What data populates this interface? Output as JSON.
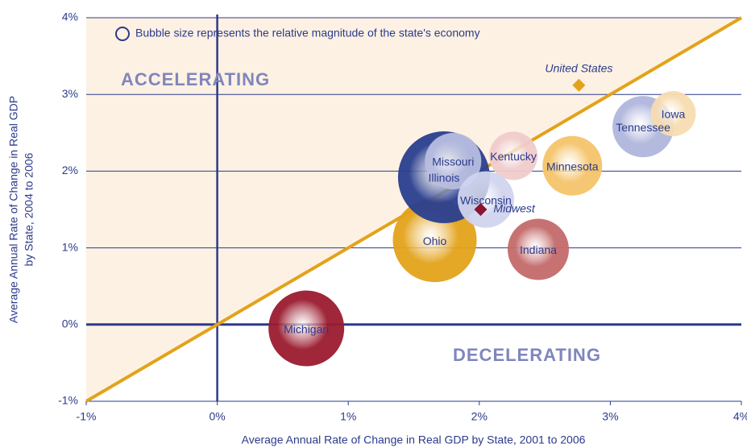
{
  "chart_data": {
    "type": "bubble",
    "x_label": "Average Annual Rate of Change in Real GDP by State, 2001 to 2006",
    "y_label": [
      "Average Annual Rate of Change in Real GDP",
      "by State, 2004 to 2006"
    ],
    "note": "Bubble size represents the relative magnitude of the state's economy",
    "annotations": [
      "ACCELERATING",
      "DECELERATING"
    ],
    "xlim": [
      -1,
      4
    ],
    "ylim": [
      -1,
      4
    ],
    "xticks": [
      {
        "value": -1,
        "label": "-1%"
      },
      {
        "value": 0,
        "label": "0%"
      },
      {
        "value": 1,
        "label": "1%"
      },
      {
        "value": 2,
        "label": "2%"
      },
      {
        "value": 3,
        "label": "3%"
      },
      {
        "value": 4,
        "label": "4%"
      }
    ],
    "yticks": [
      {
        "value": -1,
        "label": "-1%"
      },
      {
        "value": 0,
        "label": "0%"
      },
      {
        "value": 1,
        "label": "1%"
      },
      {
        "value": 2,
        "label": "2%"
      },
      {
        "value": 3,
        "label": "3%"
      },
      {
        "value": 4,
        "label": "4%"
      }
    ],
    "grid": true,
    "series": [
      {
        "name": "Michigan",
        "color": "#9b1b2f",
        "label_color": "#ffffff",
        "x": 0.68,
        "y": -0.05,
        "size": 47
      },
      {
        "name": "Ohio",
        "color": "#e3a21a",
        "label_color": "#2b3a8c",
        "x": 1.66,
        "y": 1.1,
        "size": 52
      },
      {
        "name": "Illinois",
        "color": "#2a3f8f",
        "label_color": "#ffffff",
        "x": 1.73,
        "y": 1.92,
        "size": 57
      },
      {
        "name": "Missouri",
        "color": "#b8bde0",
        "label_color": "#2b3a8c",
        "x": 1.8,
        "y": 2.13,
        "size": 35
      },
      {
        "name": "Kentucky",
        "color": "#f0cccc",
        "label_color": "#2b3a8c",
        "x": 2.26,
        "y": 2.2,
        "size": 30
      },
      {
        "name": "Wisconsin",
        "color": "#d0d4ee",
        "label_color": "#2b3a8c",
        "x": 2.05,
        "y": 1.63,
        "size": 35
      },
      {
        "name": "Minnesota",
        "color": "#f5c46a",
        "label_color": "#2b3a8c",
        "x": 2.71,
        "y": 2.07,
        "size": 37
      },
      {
        "name": "Indiana",
        "color": "#c46a6a",
        "label_color": "#2b3a8c",
        "x": 2.45,
        "y": 0.98,
        "size": 38
      },
      {
        "name": "Tennessee",
        "color": "#b0b6dc",
        "label_color": "#2b3a8c",
        "x": 3.25,
        "y": 2.58,
        "size": 38
      },
      {
        "name": "Iowa",
        "color": "#f7dcb0",
        "label_color": "#2b3a8c",
        "x": 3.48,
        "y": 2.75,
        "size": 28
      }
    ],
    "markers": [
      {
        "name": "United States",
        "color": "#e3a21a",
        "x": 2.76,
        "y": 3.12
      },
      {
        "name": "Midwest",
        "color": "#8b1330",
        "x": 2.01,
        "y": 1.5
      }
    ]
  }
}
